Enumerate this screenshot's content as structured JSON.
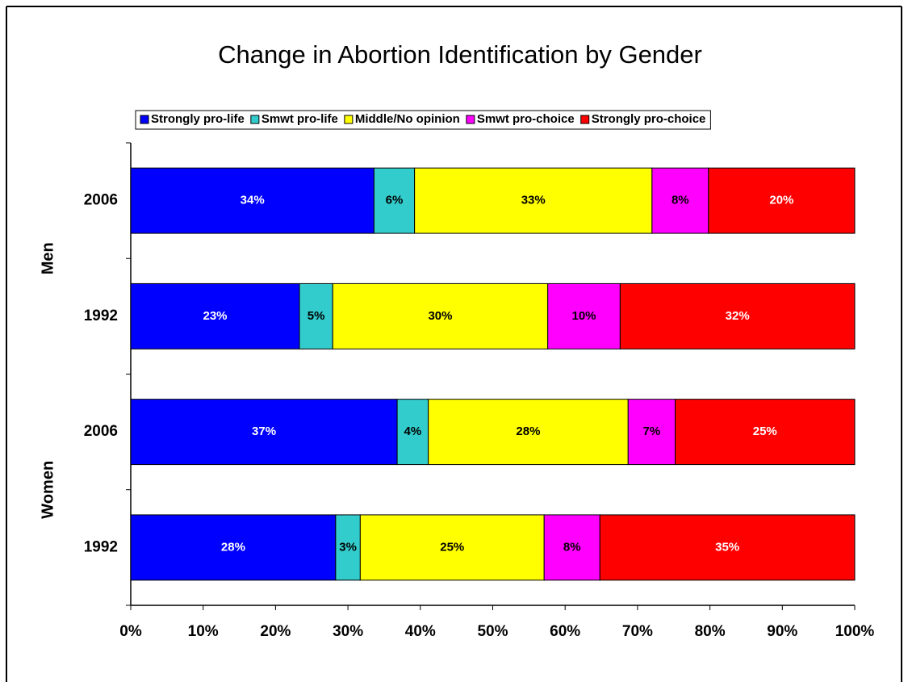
{
  "chart_data": {
    "type": "stacked_barh",
    "title": "Change in Abortion Identification by Gender",
    "categories": [
      "2006",
      "1992",
      "2006",
      "1992"
    ],
    "groups": [
      "Men",
      "Women"
    ],
    "series": [
      {
        "name": "Strongly pro-life",
        "color": "#0000ff",
        "label_color": "#ffffff",
        "values": [
          33.6,
          23.3,
          36.8,
          28.3
        ],
        "value_labels": [
          "34%",
          "23%",
          "37%",
          "28%"
        ]
      },
      {
        "name": "Smwt pro-life",
        "color": "#33cccc",
        "label_color": "#000000",
        "values": [
          5.6,
          4.6,
          4.3,
          3.4
        ],
        "value_labels": [
          "6%",
          "5%",
          "4%",
          "3%"
        ]
      },
      {
        "name": "Middle/No opinion",
        "color": "#ffff00",
        "label_color": "#000000",
        "values": [
          32.8,
          29.7,
          27.6,
          25.4
        ],
        "value_labels": [
          "33%",
          "30%",
          "28%",
          "25%"
        ]
      },
      {
        "name": "Smwt pro-choice",
        "color": "#ff00ff",
        "label_color": "#000000",
        "values": [
          7.8,
          10.0,
          6.5,
          7.7
        ],
        "value_labels": [
          "8%",
          "10%",
          "7%",
          "8%"
        ]
      },
      {
        "name": "Strongly pro-choice",
        "color": "#ff0000",
        "label_color": "#ffffff",
        "values": [
          20.2,
          32.4,
          24.8,
          35.2
        ],
        "value_labels": [
          "20%",
          "32%",
          "25%",
          "35%"
        ]
      }
    ],
    "xlim": [
      0,
      100
    ],
    "xticks": [
      {
        "value": 0,
        "label": "0%"
      },
      {
        "value": 10,
        "label": "10%"
      },
      {
        "value": 20,
        "label": "20%"
      },
      {
        "value": 30,
        "label": "30%"
      },
      {
        "value": 40,
        "label": "40%"
      },
      {
        "value": 50,
        "label": "50%"
      },
      {
        "value": 60,
        "label": "60%"
      },
      {
        "value": 70,
        "label": "70%"
      },
      {
        "value": 80,
        "label": "80%"
      },
      {
        "value": 90,
        "label": "90%"
      },
      {
        "value": 100,
        "label": "100%"
      }
    ],
    "legend": "top"
  }
}
